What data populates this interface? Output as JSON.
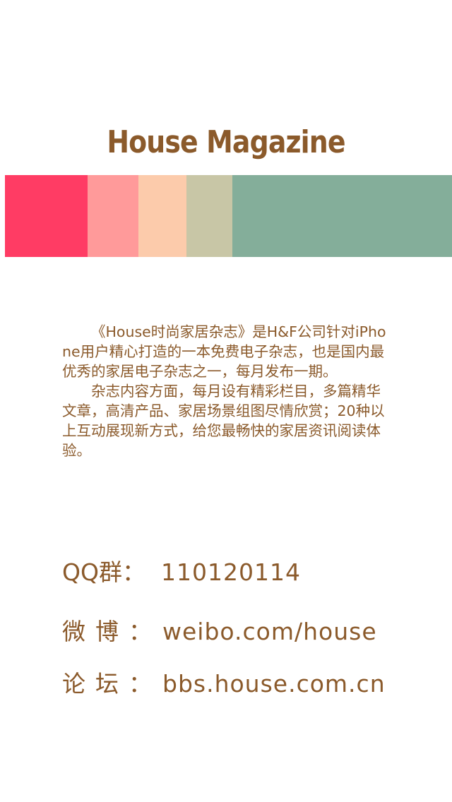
{
  "brand": {
    "title": "House Magazine",
    "title_color": "#8b5a2b"
  },
  "color_strip": [
    {
      "name": "coral-red",
      "color": "#ff3c64"
    },
    {
      "name": "salmon-pink",
      "color": "#ff9a9a"
    },
    {
      "name": "peach",
      "color": "#fccbab"
    },
    {
      "name": "sage",
      "color": "#c8c6a6"
    },
    {
      "name": "sea-green",
      "color": "#84ae9a"
    }
  ],
  "intro": {
    "paragraph_1": "《House时尚家居杂志》是H&F公司针对iPhone用户精心打造的一本免费电子杂志，也是国内最优秀的家居电子杂志之一，每月发布一期。",
    "paragraph_2": "杂志内容方面，每月设有精彩栏目，多篇精华文章，高清产品、家居场景组图尽情欣赏；20种以上互动展现新方式，给您最畅快的家居资讯阅读体验。"
  },
  "contacts": {
    "qq": {
      "label": "QQ群：",
      "value": "110120114"
    },
    "weibo": {
      "label": "微博：",
      "value": "weibo.com/house"
    },
    "bbs": {
      "label": "论坛：",
      "value": "bbs.house.com.cn"
    }
  }
}
